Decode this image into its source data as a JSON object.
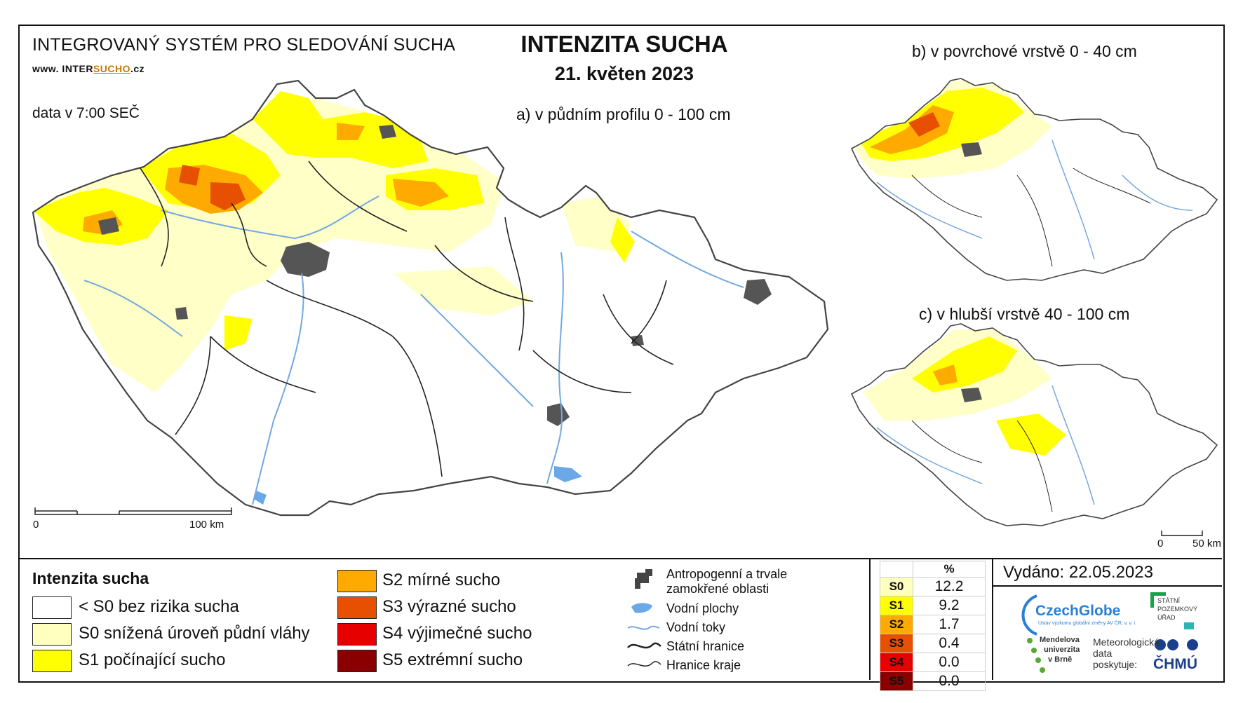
{
  "header": {
    "system_title": "INTEGROVANÝ SYSTÉM PRO SLEDOVÁNÍ SUCHA",
    "url_prefix": "www. INTER",
    "url_highlight": "SUCHO",
    "url_suffix": ".cz",
    "data_time": "data v 7:00 SEČ",
    "main_title": "INTENZITA SUCHA",
    "date": "21. květen 2023"
  },
  "maps": {
    "a_label": "a) v půdním profilu 0 - 100 cm",
    "b_label": "b) v povrchové vrstvě 0 - 40 cm",
    "c_label": "c) v hlubší vrstvě 40 - 100 cm",
    "scale_main_zero": "0",
    "scale_main_max": "100 km",
    "scale_small_zero": "0",
    "scale_small_max": "50 km"
  },
  "legend": {
    "title": "Intenzita sucha",
    "classes": [
      {
        "label": "< S0 bez rizika sucha",
        "color": "#ffffff"
      },
      {
        "label": "S0 snížená úroveň půdní vláhy",
        "color": "#ffffc0"
      },
      {
        "label": "S1 počínající sucho",
        "color": "#ffff00"
      },
      {
        "label": "S2 mírné sucho",
        "color": "#ffaa00"
      },
      {
        "label": "S3 výrazné sucho",
        "color": "#e65000"
      },
      {
        "label": "S4 výjimečné sucho",
        "color": "#e60000"
      },
      {
        "label": "S5 extrémní sucho",
        "color": "#8a0000"
      }
    ],
    "symbols": [
      {
        "label": "Antropogenní a trvale",
        "label2": "zamokřené oblasti",
        "icon": "urban-area-icon"
      },
      {
        "label": "Vodní plochy",
        "icon": "water-body-icon"
      },
      {
        "label": "Vodní toky",
        "icon": "river-icon"
      },
      {
        "label": "Státní hranice",
        "icon": "state-border-icon"
      },
      {
        "label": "Hranice kraje",
        "icon": "region-border-icon"
      }
    ]
  },
  "percent_table": {
    "header": "%",
    "rows": [
      {
        "cls": "S0",
        "value": "12.2",
        "color": "#ffffc0"
      },
      {
        "cls": "S1",
        "value": "9.2",
        "color": "#ffff00"
      },
      {
        "cls": "S2",
        "value": "1.7",
        "color": "#ffaa00"
      },
      {
        "cls": "S3",
        "value": "0.4",
        "color": "#e65000"
      },
      {
        "cls": "S4",
        "value": "0.0",
        "color": "#e60000"
      },
      {
        "cls": "S5",
        "value": "0.0",
        "color": "#8a0000"
      }
    ]
  },
  "footer": {
    "issued": "Vydáno: 22.05.2023",
    "czechglobe": "CzechGlobe",
    "czechglobe_sub": "Ústav výzkumu globální změny AV ČR, v. v. i.",
    "spu_line1": "STÁTNÍ",
    "spu_line2": "POZEMKOVÝ",
    "spu_line3": "ÚŘAD",
    "mendel_line1": "Mendelova",
    "mendel_line2": "univerzita",
    "mendel_line3": "v Brně",
    "meteo_line1": "Meteorologická",
    "meteo_line2": "data",
    "meteo_line3": "poskytuje:",
    "chmu": "ČHMÚ"
  }
}
